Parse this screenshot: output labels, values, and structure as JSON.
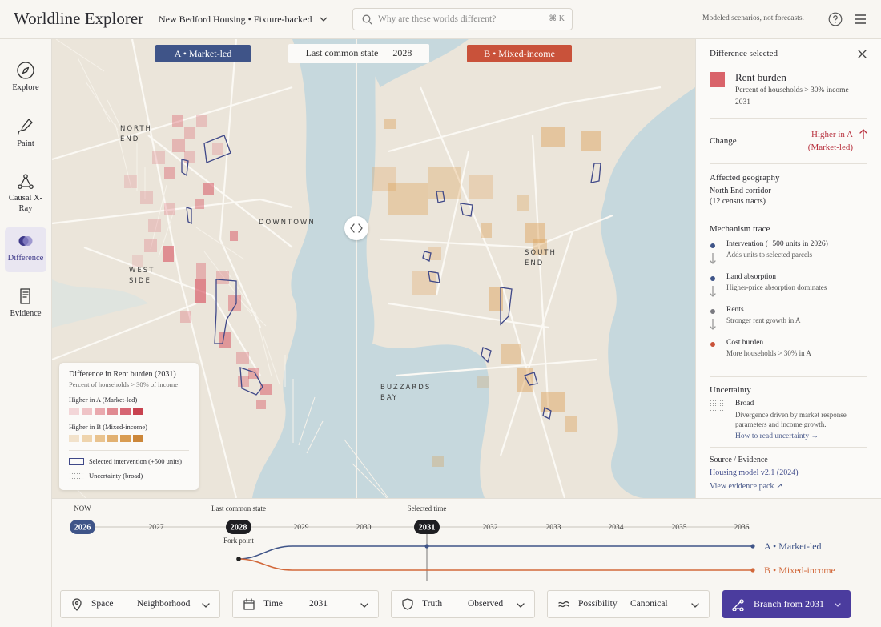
{
  "header": {
    "title": "Worldline Explorer",
    "project": "New Bedford Housing • Fixture-backed",
    "search_placeholder": "Why are these worlds different?",
    "shortcut": "⌘ K",
    "disclaimer": "Modeled scenarios, not forecasts."
  },
  "nav": [
    {
      "label": "Explore"
    },
    {
      "label": "Paint"
    },
    {
      "label": "Causal X-Ray"
    },
    {
      "label": "Difference"
    },
    {
      "label": "Evidence"
    }
  ],
  "map": {
    "world_a": "A • Market-led",
    "common": "Last common state — 2028",
    "world_b": "B • Mixed-income",
    "places": [
      "NORTH END",
      "DOWNTOWN",
      "WEST SIDE",
      "SOUTH END",
      "BUZZARDS BAY"
    ],
    "legend": {
      "title": "Difference in Rent burden (2031)",
      "subtitle": "Percent of households > 30% of income",
      "higher_a": "Higher in A (Market-led)",
      "higher_b": "Higher in B (Mixed-income)",
      "intervention": "Selected intervention (+500 units)",
      "uncertainty": "Uncertainty (broad)"
    }
  },
  "panel": {
    "heading": "Difference selected",
    "metric": "Rent burden",
    "metric_desc": "Percent of households > 30% income",
    "metric_year": "2031",
    "change_label": "Change",
    "change_value": "Higher in A (Market-led)",
    "geo_label": "Affected geography",
    "geo_value": "North End corridor",
    "geo_detail": "(12 census tracts)",
    "mechanism_label": "Mechanism trace",
    "steps": [
      {
        "title": "Intervention (+500 units in 2026)",
        "detail": "Adds units to selected parcels",
        "color": "#3f5488"
      },
      {
        "title": "Land absorption",
        "detail": "Higher-price absorption dominates",
        "color": "#3f5488"
      },
      {
        "title": "Rents",
        "detail": "Stronger rent growth in A",
        "color": "#7a7a80"
      },
      {
        "title": "Cost burden",
        "detail": "More households > 30% in A",
        "color": "#c9523a"
      }
    ],
    "uncertainty_label": "Uncertainty",
    "uncertainty_value": "Broad",
    "uncertainty_detail": "Divergence driven by market response parameters and income growth.",
    "uncertainty_link": "How to read uncertainty →",
    "source_label": "Source / Evidence",
    "source_value": "Housing model v2.1 (2024)",
    "source_link": "View evidence pack ↗"
  },
  "timeline": {
    "years": [
      2026,
      2027,
      2028,
      2029,
      2030,
      2031,
      2032,
      2033,
      2034,
      2035,
      2036
    ],
    "now": "NOW",
    "common": "Last common state",
    "selected": "Selected time",
    "fork": "Fork point",
    "branches": [
      {
        "label": "A • Market-led",
        "color": "#3f5488"
      },
      {
        "label": "B • Mixed-income",
        "color": "#d2683a"
      }
    ]
  },
  "controls": [
    {
      "label": "Space",
      "value": "Neighborhood"
    },
    {
      "label": "Time",
      "value": "2031"
    },
    {
      "label": "Truth",
      "value": "Observed"
    },
    {
      "label": "Possibility",
      "value": "Canonical"
    }
  ],
  "action": "Branch from 2031"
}
